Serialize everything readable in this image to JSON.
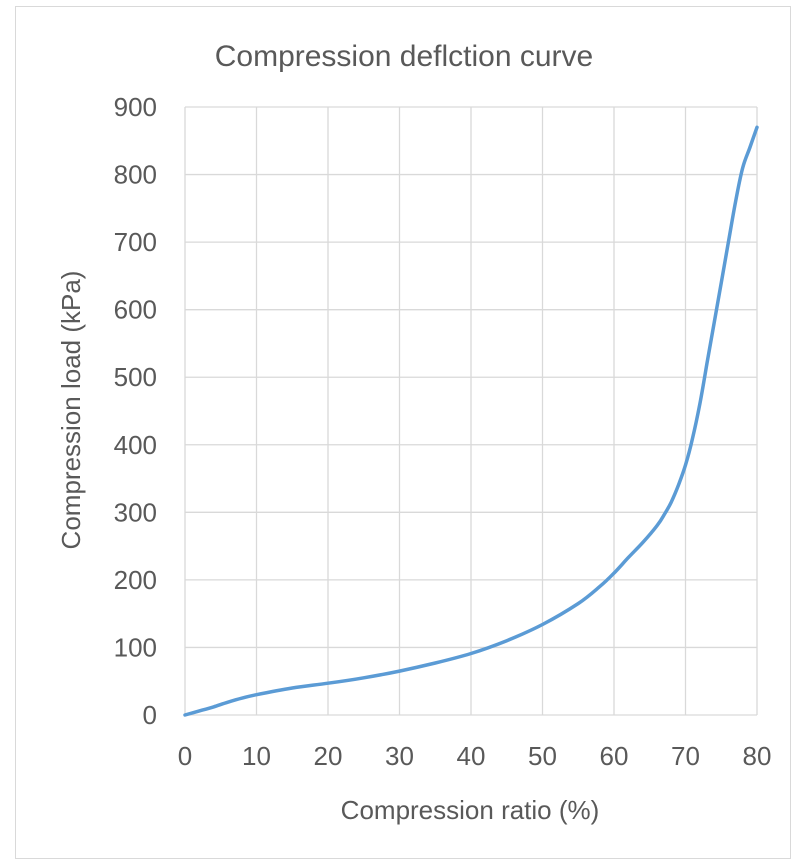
{
  "chart_data": {
    "type": "line",
    "title": "Compression deflction curve",
    "xlabel": "Compression ratio (%)",
    "ylabel": "Compression load (kPa)",
    "xlim": [
      0,
      80
    ],
    "ylim": [
      0,
      900
    ],
    "x_ticks": [
      0,
      10,
      20,
      30,
      40,
      50,
      60,
      70,
      80
    ],
    "y_ticks": [
      0,
      100,
      200,
      300,
      400,
      500,
      600,
      700,
      800,
      900
    ],
    "grid": true,
    "legend": "none",
    "series_color": "#5b9bd5",
    "series": [
      {
        "x": [
          0,
          2,
          4,
          6,
          8,
          10,
          15,
          20,
          25,
          30,
          35,
          40,
          45,
          50,
          55,
          58,
          60,
          62,
          64,
          66,
          67,
          68,
          69,
          70,
          71,
          72,
          73,
          74,
          75,
          76,
          77,
          78,
          79,
          80
        ],
        "y": [
          0,
          6,
          12,
          19,
          25,
          30,
          40,
          47,
          55,
          65,
          77,
          91,
          110,
          134,
          165,
          190,
          210,
          233,
          255,
          280,
          296,
          315,
          340,
          370,
          410,
          460,
          520,
          580,
          640,
          700,
          760,
          810,
          840,
          870
        ]
      }
    ]
  }
}
